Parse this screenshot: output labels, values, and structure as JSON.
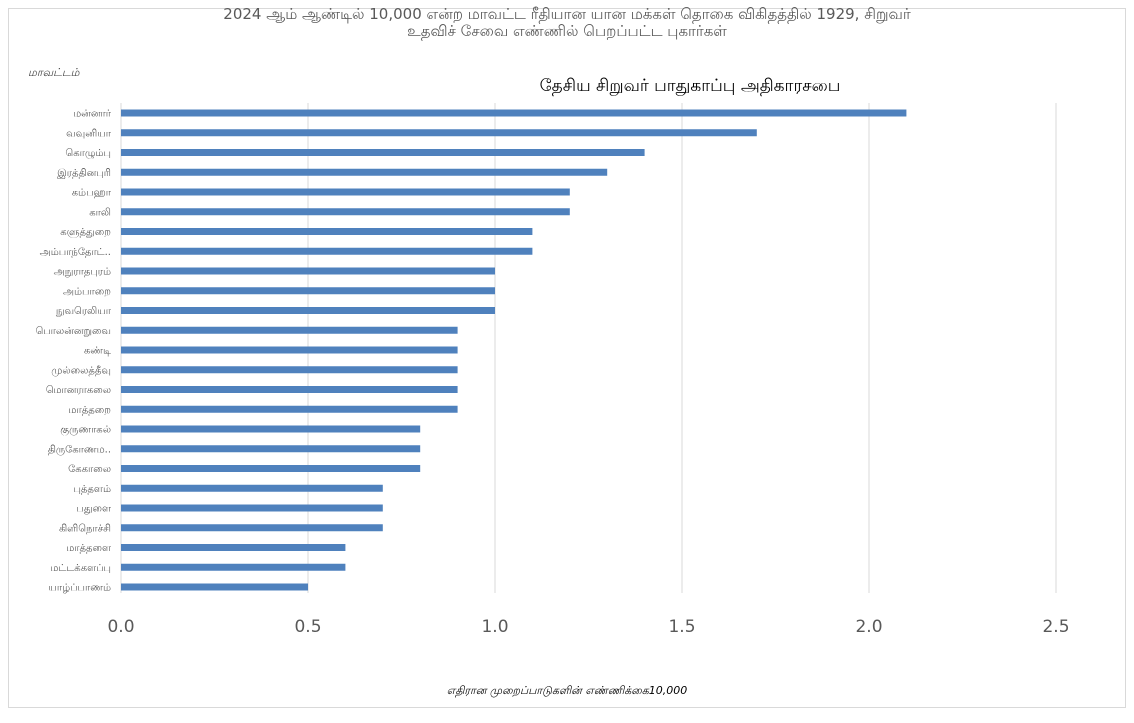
{
  "chart_data": {
    "type": "bar",
    "orientation": "horizontal",
    "title_line1": "2024 ஆம் ஆண்டில் 10,000 என்ற மாவட்ட ரீதியான யான மக்கள் தொகை விகிதத்தில் 1929, சிறுவர்",
    "title_line2": "உதவிச் சேவை   எண்ணில் பெறப்பட்ட புகார்கள்",
    "subtitle": "தேசிய சிறுவர் பாதுகாப்பு அதிகாரசபை",
    "ylabel": "மாவட்டம்",
    "xlabel": "எதிரான முறைப்பாடுகளின் எண்ணிக்கை10,000",
    "categories": [
      "மன்னார்",
      "வவுனியா",
      "கொழும்பு",
      "இரத்தினபுரி",
      "கம்பஹா",
      "காலி",
      "களுத்துறை",
      "அம்பாந்தோட்..",
      "அநுராதபுரம்",
      "அம்பாறை",
      "நுவரெலியா",
      "பொலன்னறுவை",
      "கண்டி",
      "முல்லைத்தீவு",
      "மொனராகலை",
      "மாத்தறை",
      "குருணாகல்",
      "திருகோணம..",
      "கேகாலை",
      "புத்தளம்",
      "பதுளை",
      "கிளிநொச்சி",
      "மாத்தளை",
      "மட்டக்களப்பு",
      "யாழ்ப்பாணம்"
    ],
    "values": [
      2.1,
      1.7,
      1.4,
      1.3,
      1.2,
      1.2,
      1.1,
      1.1,
      1.0,
      1.0,
      1.0,
      0.9,
      0.9,
      0.9,
      0.9,
      0.9,
      0.8,
      0.8,
      0.8,
      0.7,
      0.7,
      0.7,
      0.6,
      0.6,
      0.5
    ],
    "xlim": [
      0,
      2.5
    ],
    "xticks": [
      "0.0",
      "0.5",
      "1.0",
      "1.5",
      "2.0",
      "2.5"
    ],
    "grid": true,
    "bar_color": "#4f81bd",
    "grid_color": "#d9d9d9"
  }
}
